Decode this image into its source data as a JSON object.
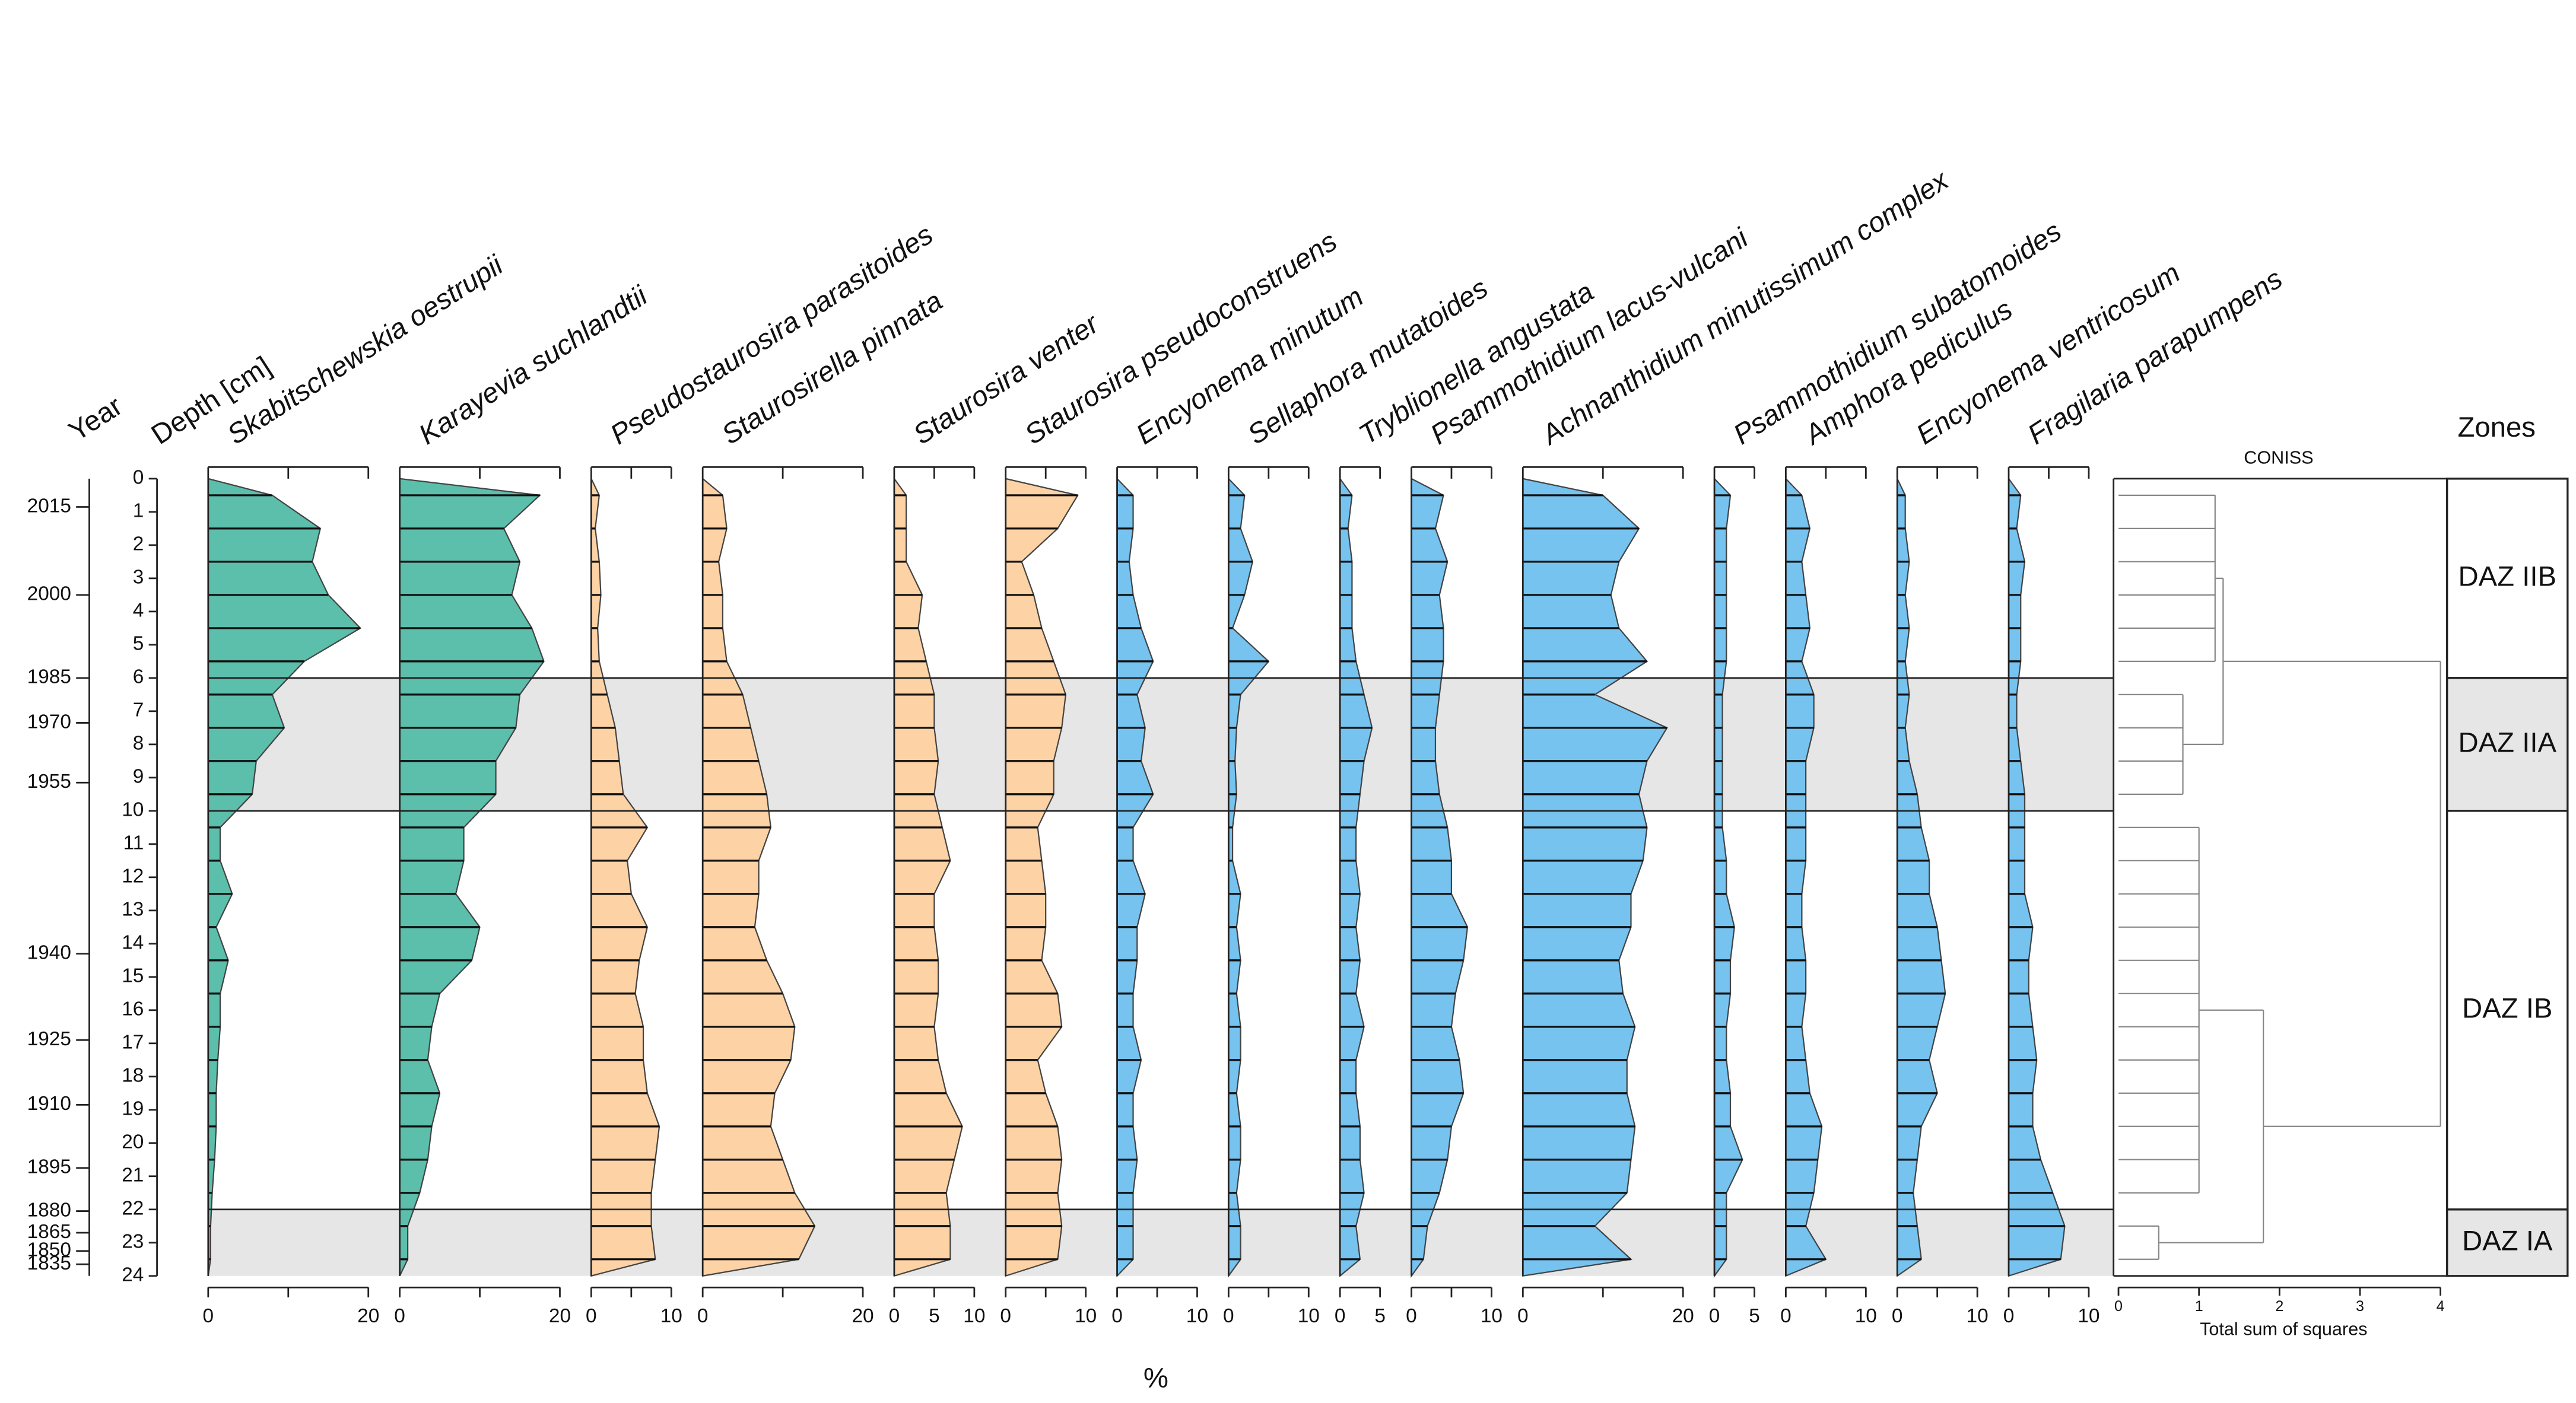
{
  "chart_data": {
    "type": "stratigraphic",
    "xlabel": "%",
    "year_label": "Year",
    "depth_label": "Depth [cm]",
    "zones_label": "Zones",
    "ylim": [
      0,
      24
    ],
    "yticks": [
      0,
      1,
      2,
      3,
      4,
      5,
      6,
      7,
      8,
      9,
      10,
      11,
      12,
      13,
      14,
      15,
      16,
      17,
      18,
      19,
      20,
      21,
      22,
      23,
      24
    ],
    "year_ticks": [
      {
        "value": 0.85,
        "label": "2015"
      },
      {
        "value": 3.5,
        "label": "2000"
      },
      {
        "value": 6.0,
        "label": "1985"
      },
      {
        "value": 7.35,
        "label": "1970"
      },
      {
        "value": 9.15,
        "label": "1955"
      },
      {
        "value": 14.3,
        "label": "1940"
      },
      {
        "value": 16.9,
        "label": "1925"
      },
      {
        "value": 18.85,
        "label": "1910"
      },
      {
        "value": 20.75,
        "label": "1895"
      },
      {
        "value": 22.05,
        "label": "1880"
      },
      {
        "value": 22.7,
        "label": "1865"
      },
      {
        "value": 23.25,
        "label": "1850"
      },
      {
        "value": 23.65,
        "label": "1835"
      }
    ],
    "depths": [
      0.5,
      1.5,
      2.5,
      3.5,
      4.5,
      5.5,
      6.5,
      7.5,
      8.5,
      9.5,
      10.5,
      11.5,
      12.5,
      13.5,
      14.5,
      15.5,
      16.5,
      17.5,
      18.5,
      19.5,
      20.5,
      21.5,
      22.5,
      23.5
    ],
    "series": [
      {
        "name": "Skabitschewskia oestrupii",
        "color": "#5cbfac",
        "xlim": [
          0,
          20
        ],
        "xticks": [
          0,
          20
        ],
        "minor_xticks": [
          10
        ],
        "values": [
          8,
          14,
          13,
          15,
          19,
          12,
          8,
          9.5,
          6,
          5.5,
          1.5,
          1.5,
          3,
          1,
          2.5,
          1.5,
          1.5,
          1.2,
          1,
          1,
          0.8,
          0.5,
          0.3,
          0.3
        ]
      },
      {
        "name": "Karayevia suchlandtii",
        "color": "#5cbfac",
        "xlim": [
          0,
          20
        ],
        "xticks": [
          0,
          20
        ],
        "minor_xticks": [
          10
        ],
        "values": [
          17.5,
          13,
          15,
          14,
          16.5,
          18,
          15,
          14.5,
          12,
          12,
          8,
          8,
          7,
          10,
          9,
          5,
          4,
          3.5,
          5,
          4,
          3.5,
          2.5,
          1,
          1
        ]
      },
      {
        "name": "Pseudostaurosira parasitoides",
        "color": "#fdd2a5",
        "xlim": [
          0,
          10
        ],
        "xticks": [
          0,
          10
        ],
        "minor_xticks": [
          5
        ],
        "values": [
          1,
          0.5,
          1,
          1.2,
          0.8,
          1,
          2,
          3,
          3.5,
          4,
          7,
          4.5,
          5,
          7,
          6,
          5.5,
          6.5,
          6.5,
          7,
          8.5,
          8,
          7.5,
          7.5,
          8
        ]
      },
      {
        "name": "Staurosirella pinnata",
        "color": "#fdd2a5",
        "xlim": [
          0,
          20
        ],
        "xticks": [
          0,
          20
        ],
        "minor_xticks": [
          10
        ],
        "values": [
          2.5,
          3,
          2,
          2.5,
          2.5,
          3,
          5,
          6,
          7,
          8,
          8.5,
          7,
          7,
          6.5,
          8,
          10,
          11.5,
          11,
          9,
          8.5,
          10,
          11.5,
          14,
          12
        ]
      },
      {
        "name": "Staurosira venter",
        "color": "#fdd2a5",
        "xlim": [
          0,
          10
        ],
        "xticks": [
          0,
          5,
          10
        ],
        "minor_xticks": [],
        "values": [
          1.5,
          1.5,
          1.5,
          3.5,
          3,
          4,
          5,
          5,
          5.5,
          5,
          6,
          7,
          5,
          5,
          5.5,
          5.5,
          5,
          5.5,
          6.5,
          8.5,
          7.5,
          6.5,
          7,
          7
        ]
      },
      {
        "name": "Staurosira pseudoconstruens",
        "color": "#fdd2a5",
        "xlim": [
          0,
          10
        ],
        "xticks": [
          0,
          10
        ],
        "minor_xticks": [
          5
        ],
        "values": [
          9,
          6.5,
          2,
          3.5,
          4.5,
          6,
          7.5,
          7,
          6,
          6,
          4,
          4.5,
          5,
          5,
          4.5,
          6.5,
          7,
          4,
          5,
          6.5,
          7,
          6.5,
          7,
          6.5
        ]
      },
      {
        "name": "Encyonema minutum",
        "color": "#76c3f0",
        "xlim": [
          0,
          10
        ],
        "xticks": [
          0,
          10
        ],
        "minor_xticks": [
          5
        ],
        "values": [
          2,
          2,
          1.5,
          2,
          3,
          4.5,
          2.5,
          3.5,
          3,
          4.5,
          2,
          2,
          3.5,
          2.5,
          2.5,
          2,
          2,
          3,
          2,
          2,
          2.5,
          2,
          2,
          2
        ]
      },
      {
        "name": "Sellaphora mutatoides",
        "color": "#76c3f0",
        "xlim": [
          0,
          10
        ],
        "xticks": [
          0,
          10
        ],
        "minor_xticks": [
          5
        ],
        "values": [
          2,
          1.5,
          3,
          2,
          0.5,
          5,
          1.5,
          1,
          0.8,
          1,
          0.5,
          0.5,
          1.5,
          1,
          1.5,
          1,
          1.5,
          1.5,
          1,
          1.5,
          1.5,
          1,
          1.5,
          1.5
        ]
      },
      {
        "name": "Tryblionella angustata",
        "color": "#76c3f0",
        "xlim": [
          0,
          5
        ],
        "xticks": [
          0,
          5
        ],
        "minor_xticks": [],
        "values": [
          1.5,
          1,
          1.5,
          1.5,
          1.5,
          2,
          3,
          4,
          3,
          2.5,
          2,
          2,
          2.5,
          2,
          2.5,
          2,
          3,
          2,
          2,
          2.5,
          2.5,
          3,
          2,
          2.5
        ]
      },
      {
        "name": "Psammothidium lacus-vulcani",
        "color": "#76c3f0",
        "xlim": [
          0,
          10
        ],
        "xticks": [
          0,
          10
        ],
        "minor_xticks": [
          5
        ],
        "values": [
          4,
          3,
          4.5,
          3.5,
          4,
          4,
          3.5,
          3,
          3,
          3.5,
          4.5,
          5,
          5,
          7,
          6.5,
          5.5,
          5,
          6,
          6.5,
          5,
          4.5,
          3.5,
          2,
          1.5
        ]
      },
      {
        "name": "Achnanthidium minutissimum complex",
        "color": "#76c3f0",
        "xlim": [
          0,
          20
        ],
        "xticks": [
          0,
          20
        ],
        "minor_xticks": [
          10
        ],
        "values": [
          10,
          14.5,
          12,
          11,
          12,
          15.5,
          9,
          18,
          15.5,
          14.5,
          15.5,
          15,
          13.5,
          13.5,
          12,
          12.5,
          14,
          13,
          13,
          14,
          13.5,
          13,
          9,
          13.5
        ]
      },
      {
        "name": "Psammothidium subatomoides",
        "color": "#76c3f0",
        "xlim": [
          0,
          5
        ],
        "xticks": [
          0,
          5
        ],
        "minor_xticks": [],
        "values": [
          2,
          1.5,
          1.5,
          1.5,
          1.5,
          1.5,
          1,
          1,
          1,
          1,
          1,
          1.5,
          1.5,
          2.5,
          2,
          2,
          1.5,
          1.5,
          2,
          2,
          3.5,
          1.5,
          1.5,
          1.5
        ]
      },
      {
        "name": "Amphora pediculus",
        "color": "#76c3f0",
        "xlim": [
          0,
          10
        ],
        "xticks": [
          0,
          10
        ],
        "minor_xticks": [
          5
        ],
        "values": [
          2,
          3,
          2,
          2.5,
          3,
          2,
          3.5,
          3.5,
          2.5,
          2.5,
          2.5,
          2.5,
          2,
          2,
          2.5,
          2.5,
          2,
          2.5,
          3,
          4.5,
          4,
          3.5,
          2.5,
          5
        ]
      },
      {
        "name": "Encyonema ventricosum",
        "color": "#76c3f0",
        "xlim": [
          0,
          10
        ],
        "xticks": [
          0,
          10
        ],
        "minor_xticks": [
          5
        ],
        "values": [
          1,
          1,
          1.5,
          1,
          1.5,
          1,
          1.5,
          1,
          1.5,
          2.5,
          3,
          4,
          4,
          5,
          5.5,
          6,
          5,
          4,
          5,
          3,
          2.5,
          2,
          2.5,
          3
        ]
      },
      {
        "name": "Fragilaria parарumpens",
        "color": "#76c3f0",
        "xlim": [
          0,
          10
        ],
        "xticks": [
          0,
          10
        ],
        "minor_xticks": [
          5
        ],
        "values": [
          1.5,
          1,
          2,
          1.5,
          1.5,
          1.5,
          1,
          1,
          1.5,
          2,
          2,
          2,
          2,
          3,
          2.5,
          2.5,
          3,
          3.5,
          3,
          3,
          4,
          5.5,
          7,
          6.5
        ]
      }
    ],
    "zones": [
      {
        "name": "DAZ IIB",
        "top": 0,
        "bottom": 6,
        "shaded": false,
        "height": 1.2
      },
      {
        "name": "DAZ IIA",
        "top": 6,
        "bottom": 10,
        "shaded": true,
        "height": 0.8
      },
      {
        "name": "DAZ IB",
        "top": 10,
        "bottom": 22,
        "shaded": false,
        "height": 1.0
      },
      {
        "name": "DAZ IA",
        "top": 22,
        "bottom": 24,
        "shaded": true,
        "height": 0.5
      }
    ],
    "coniss": {
      "title": "CONISS",
      "xlabel": "Total sum of squares",
      "xlim": [
        0,
        4
      ],
      "xticks": [
        0,
        1,
        2,
        3,
        4
      ],
      "merges": [
        {
          "zones": [
            0,
            1
          ],
          "height": 1.3
        },
        {
          "zones": [
            2,
            3
          ],
          "height": 1.8
        },
        {
          "zones": [
            0,
            2
          ],
          "height": 4
        }
      ]
    }
  }
}
